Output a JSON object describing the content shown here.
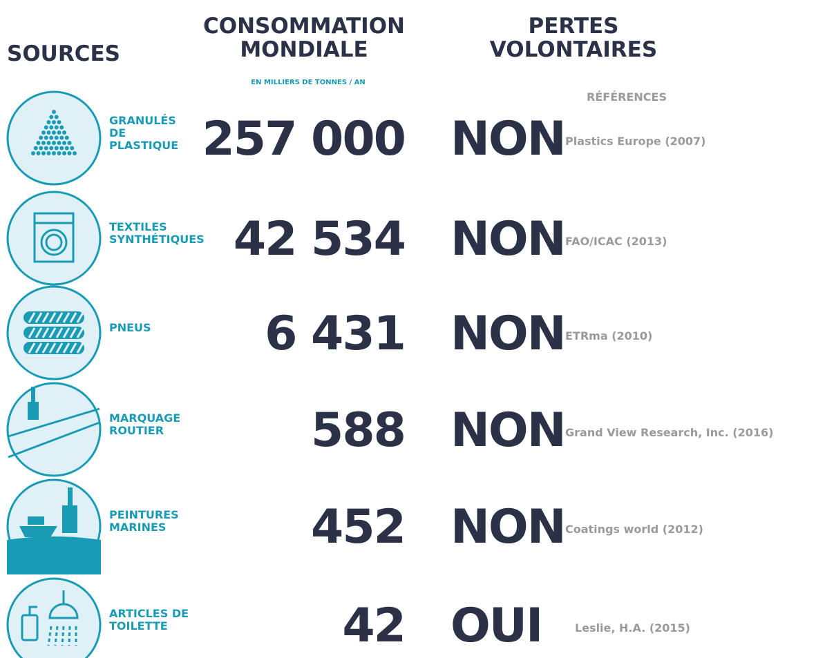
{
  "header": {
    "sources": "SOURCES",
    "consumption": [
      "CONSOMMATION",
      "MONDIALE"
    ],
    "consumption_unit": "EN MILLIERS DE TONNES / AN",
    "losses": [
      "PERTES",
      "VOLONTAIRES"
    ],
    "references": "RÉFÉRENCES"
  },
  "rows": [
    {
      "source": [
        "GRANULÉS",
        "DE",
        "PLASTIQUE"
      ],
      "consumption": "257 000",
      "voluntary": "NON",
      "reference": "Plastics Europe (2007)"
    },
    {
      "source": [
        "TEXTILES",
        "SYNTHÉTIQUES"
      ],
      "consumption": "42 534",
      "voluntary": "NON",
      "reference": "FAO/ICAC (2013)"
    },
    {
      "source": [
        "PNEUS"
      ],
      "consumption": "6 431",
      "voluntary": "NON",
      "reference": "ETRma (2010)"
    },
    {
      "source": [
        "MARQUAGE",
        "ROUTIER"
      ],
      "consumption": "588",
      "voluntary": "NON",
      "reference": "Grand View Research, Inc. (2016)"
    },
    {
      "source": [
        "PEINTURES",
        "MARINES"
      ],
      "consumption": "452",
      "voluntary": "NON",
      "reference": "Coatings world (2012)"
    },
    {
      "source": [
        "ARTICLES DE",
        "TOILETTE"
      ],
      "consumption": "42",
      "voluntary": "OUI",
      "reference": "Leslie, H.A. (2015)"
    }
  ]
}
